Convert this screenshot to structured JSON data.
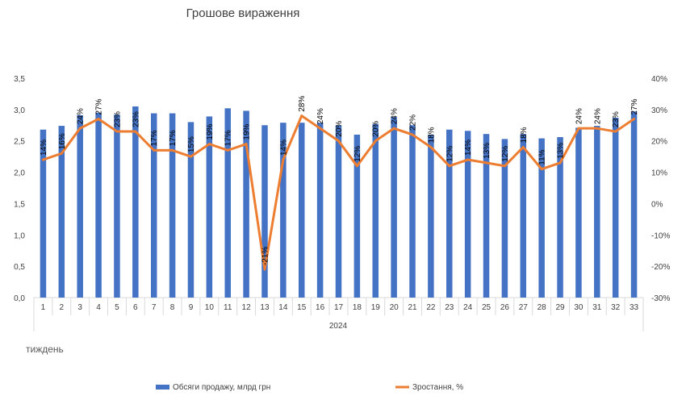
{
  "chart_data": {
    "type": "bar",
    "title": "Грошове вираження",
    "xlabel": "тиждень",
    "year_label": "2024",
    "categories": [
      "1",
      "2",
      "3",
      "4",
      "5",
      "6",
      "7",
      "8",
      "9",
      "10",
      "11",
      "12",
      "13",
      "14",
      "15",
      "16",
      "17",
      "18",
      "19",
      "20",
      "21",
      "22",
      "23",
      "24",
      "25",
      "26",
      "27",
      "28",
      "29",
      "30",
      "31",
      "32",
      "33"
    ],
    "series": [
      {
        "name": "Обсяги продажу, млрд грн",
        "type": "bar",
        "axis": "left",
        "color": "#4472C4",
        "values": [
          2.68,
          2.74,
          2.91,
          2.95,
          2.92,
          3.05,
          2.94,
          2.94,
          2.8,
          2.89,
          3.02,
          2.98,
          2.75,
          2.79,
          2.79,
          2.79,
          2.75,
          2.6,
          2.77,
          2.88,
          2.75,
          2.6,
          2.68,
          2.66,
          2.61,
          2.53,
          2.61,
          2.54,
          2.56,
          2.71,
          2.74,
          2.87,
          2.97
        ]
      },
      {
        "name": "Зростання, %",
        "type": "line",
        "axis": "right",
        "color": "#ED7D31",
        "values": [
          14,
          16,
          24,
          27,
          23,
          23,
          17,
          17,
          15,
          19,
          17,
          19,
          -21,
          14,
          28,
          24,
          20,
          12,
          20,
          24,
          22,
          18,
          12,
          14,
          13,
          12,
          18,
          11,
          13,
          24,
          24,
          23,
          27
        ],
        "labels": [
          "14%",
          "16%",
          "24%",
          "27%",
          "23%",
          "23%",
          "17%",
          "17%",
          "15%",
          "19%",
          "17%",
          "19%",
          "-21%",
          "14%",
          "28%",
          "24%",
          "20%",
          "12%",
          "20%",
          "24%",
          "22%",
          "18%",
          "12%",
          "14%",
          "13%",
          "12%",
          "18%",
          "11%",
          "13%",
          "24%",
          "24%",
          "23%",
          "27%"
        ]
      }
    ],
    "y_left": {
      "min": 0,
      "max": 3.5,
      "step": 0.5,
      "tick_labels": [
        "0,0",
        "0,5",
        "1,0",
        "1,5",
        "2,0",
        "2,5",
        "3,0",
        "3,5"
      ]
    },
    "y_right": {
      "min": -30,
      "max": 40,
      "step": 10,
      "tick_labels": [
        "-30%",
        "-20%",
        "-10%",
        "0%",
        "10%",
        "20%",
        "30%",
        "40%"
      ]
    },
    "grid": false,
    "legend": "bottom"
  }
}
